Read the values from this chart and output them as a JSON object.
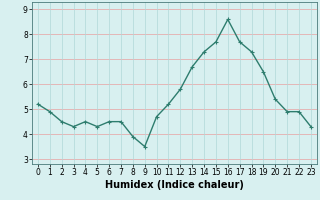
{
  "x": [
    0,
    1,
    2,
    3,
    4,
    5,
    6,
    7,
    8,
    9,
    10,
    11,
    12,
    13,
    14,
    15,
    16,
    17,
    18,
    19,
    20,
    21,
    22,
    23
  ],
  "y": [
    5.2,
    4.9,
    4.5,
    4.3,
    4.5,
    4.3,
    4.5,
    4.5,
    3.9,
    3.5,
    4.7,
    5.2,
    5.8,
    6.7,
    7.3,
    7.7,
    8.6,
    7.7,
    7.3,
    6.5,
    5.4,
    4.9,
    4.9,
    4.3
  ],
  "line_color": "#2e7d6e",
  "marker": "+",
  "marker_size": 3,
  "line_width": 1.0,
  "bg_color": "#d8f0f0",
  "grid_h_color": "#e8a0a0",
  "grid_v_color": "#b0d8d8",
  "xlabel": "Humidex (Indice chaleur)",
  "xlabel_fontsize": 7,
  "yticks": [
    3,
    4,
    5,
    6,
    7,
    8,
    9
  ],
  "xticks": [
    0,
    1,
    2,
    3,
    4,
    5,
    6,
    7,
    8,
    9,
    10,
    11,
    12,
    13,
    14,
    15,
    16,
    17,
    18,
    19,
    20,
    21,
    22,
    23
  ],
  "xlim": [
    -0.5,
    23.5
  ],
  "ylim": [
    2.8,
    9.3
  ],
  "tick_fontsize": 5.5,
  "spine_color": "#4a7a7a"
}
